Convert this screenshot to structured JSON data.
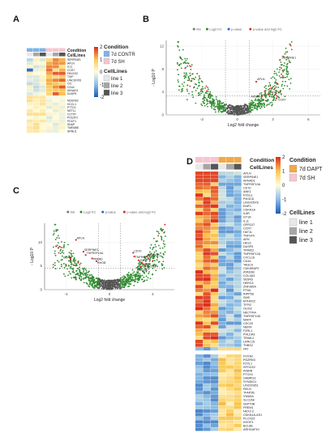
{
  "panels": {
    "A": {
      "letter": "A"
    },
    "B": {
      "letter": "B"
    },
    "C": {
      "letter": "C"
    },
    "D": {
      "letter": "D"
    }
  },
  "heatmapA": {
    "annotation_labels": [
      "Condition",
      "CellLines"
    ],
    "legend_ticks": [
      "2",
      "1",
      "0",
      "-1",
      "-2"
    ],
    "condition_legend": {
      "title": "Condition",
      "items": [
        {
          "label": "7d CONTR",
          "color": "#7fb3e6"
        },
        {
          "label": "7d SH",
          "color": "#f5c6cf"
        }
      ]
    },
    "celllines_legend": {
      "title": "CellLines",
      "items": [
        {
          "label": "line 1",
          "color": "#e8e8e8"
        },
        {
          "label": "line 2",
          "color": "#a6a6a6"
        },
        {
          "label": "line 3",
          "color": "#555555"
        }
      ]
    },
    "genes": [
      "SERPINE1",
      "APLN",
      "IL11",
      "CCR7",
      "FBXO32",
      "TXIP",
      "LINC00705",
      "CIC",
      "CD44",
      "AKNAD1",
      "DUSP5",
      "",
      "NDUFB3",
      "HCCL1",
      "PTTG1",
      "NET1L",
      "CCT5T",
      "POU2F2",
      "PDCF1",
      "SNAP",
      "TMEM88",
      "SRNU1"
    ],
    "condition_row": [
      "#7fb3e6",
      "#7fb3e6",
      "#7fb3e6",
      "#f5c6cf",
      "#f5c6cf",
      "#f5c6cf"
    ],
    "cellline_row": [
      "#e8e8e8",
      "#a6a6a6",
      "#555555",
      "#e8e8e8",
      "#a6a6a6",
      "#555555"
    ]
  },
  "volcanoB": {
    "legend_items": [
      "NS",
      "Log2 FC",
      "p-value",
      "p-value and log2 FC"
    ],
    "ylabel": "- Log10 P",
    "xlabel": "Log2 fold change",
    "x_ticks": [
      "-3",
      "0",
      "3",
      "6"
    ],
    "y_ticks": [
      "0",
      "4",
      "8",
      "12"
    ],
    "labels": [
      "SERPINE1",
      "APLN",
      "FBXO32",
      "AKNAD1",
      "CCR7"
    ]
  },
  "volcanoC": {
    "legend_items": [
      "NS",
      "Log2 FC",
      "p-value",
      "p-value and log2 FC"
    ],
    "ylabel": "- Log10 P",
    "xlabel": "Log2 fold change",
    "x_ticks": [
      "-4",
      "0",
      "4"
    ],
    "y_ticks": [
      "0",
      "5",
      "10"
    ],
    "labels": [
      "APLN",
      "SERPINE1",
      "TNFRSF10A",
      "CCR7",
      "PPARD",
      "RHOB",
      "CD70",
      "TNFRSF12A",
      "AKNAD1",
      "IL6R",
      "DGKH",
      "FBXO32",
      "PXDNL"
    ]
  },
  "heatmapD": {
    "annotation_labels": [
      "Condition",
      "CellLines"
    ],
    "legend_ticks": [
      "2",
      "1",
      "0",
      "-1",
      "-2"
    ],
    "condition_legend": {
      "title": "Condition",
      "items": [
        {
          "label": "7d DAPT",
          "color": "#f0a94a"
        },
        {
          "label": "7d SH",
          "color": "#f5c6cf"
        }
      ]
    },
    "celllines_legend": {
      "title": "CellLines",
      "items": [
        {
          "label": "line 1",
          "color": "#e8e8e8"
        },
        {
          "label": "line 2",
          "color": "#a6a6a6"
        },
        {
          "label": "line 3",
          "color": "#555555"
        }
      ]
    },
    "condition_row": [
      "#f5c6cf",
      "#f5c6cf",
      "#f5c6cf",
      "#f0a94a",
      "#f0a94a",
      "#f0a94a"
    ],
    "cellline_row": [
      "#e8e8e8",
      "#a6a6a6",
      "#555555",
      "#e8e8e8",
      "#a6a6a6",
      "#555555"
    ],
    "genes": [
      "APLN",
      "SERPINE1",
      "AKNAD1",
      "TNFRSF10A",
      "CD70",
      "ANK1",
      "FOSL1",
      "PIK3CD",
      "LINC00578",
      "EMP1",
      "CDKN1A",
      "IL6R",
      "GT1A",
      "IL11",
      "GPR137",
      "CCR7",
      "HAT1L",
      "TNFSF9",
      "AEN",
      "HES2",
      "DUSP5",
      "TRIM22",
      "TNFRSF12A",
      "CXCL16",
      "CD44",
      "TAGLN",
      "CDK5RAP2",
      "ATAD3B",
      "COL3A3",
      "SESN3",
      "HERC5",
      "ZNF385A",
      "PTK6",
      "INPP5D",
      "SMS",
      "MTHFD2",
      "TFPI2",
      "OLIG2",
      "NECTIN4",
      "TNFRSF10D",
      "MAFF",
      "CDC20",
      "NEFM",
      "FZRL1",
      "PHLDA3",
      "TRIML2",
      "LRRC15",
      "THBS2",
      "FAT",
      "",
      "FOXA2",
      "PDZRN3",
      "FZXL1",
      "SPOCK2",
      "INSRR",
      "PTCH1",
      "GABRG3",
      "SYNDIG1",
      "LINC00261",
      "RELN",
      "TFAP2B",
      "VWA5A",
      "SLC2A8",
      "SEPT0B",
      "FREM1",
      "NKX2-2",
      "CDKN1A-AS1",
      "PLCXD3",
      "KDGF3",
      "BCL6B",
      "ARHGAP10"
    ],
    "split_after": 48
  }
}
